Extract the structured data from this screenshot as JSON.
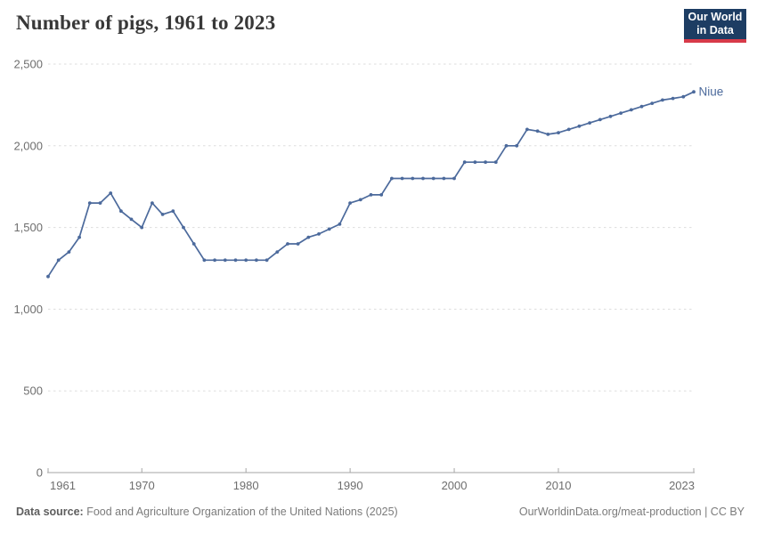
{
  "header": {
    "title": "Number of pigs, 1961 to 2023",
    "logo": {
      "line1": "Our World",
      "line2": "in Data"
    }
  },
  "chart_data": {
    "type": "line",
    "title": "Number of pigs, 1961 to 2023",
    "entity": "Niue",
    "xlim": [
      1961,
      2023
    ],
    "ylim": [
      0,
      2500
    ],
    "grid": true,
    "legend_position": "end-of-line-label",
    "x_ticks": [
      1961,
      1970,
      1980,
      1990,
      2000,
      2010,
      2023
    ],
    "y_ticks": [
      0,
      500,
      1000,
      1500,
      2000,
      2500
    ],
    "y_tick_labels": [
      "0",
      "500",
      "1,000",
      "1,500",
      "2,000",
      "2,500"
    ],
    "x": [
      1961,
      1962,
      1963,
      1964,
      1965,
      1966,
      1967,
      1968,
      1969,
      1970,
      1971,
      1972,
      1973,
      1974,
      1975,
      1976,
      1977,
      1978,
      1979,
      1980,
      1981,
      1982,
      1983,
      1984,
      1985,
      1986,
      1987,
      1988,
      1989,
      1990,
      1991,
      1992,
      1993,
      1994,
      1995,
      1996,
      1997,
      1998,
      1999,
      2000,
      2001,
      2002,
      2003,
      2004,
      2005,
      2006,
      2007,
      2008,
      2009,
      2010,
      2011,
      2012,
      2013,
      2014,
      2015,
      2016,
      2017,
      2018,
      2019,
      2020,
      2021,
      2022,
      2023
    ],
    "values": [
      1200,
      1300,
      1350,
      1440,
      1650,
      1650,
      1710,
      1600,
      1550,
      1500,
      1650,
      1580,
      1600,
      1500,
      1400,
      1300,
      1300,
      1300,
      1300,
      1300,
      1300,
      1300,
      1350,
      1400,
      1400,
      1440,
      1460,
      1490,
      1520,
      1650,
      1670,
      1700,
      1700,
      1800,
      1800,
      1800,
      1800,
      1800,
      1800,
      1800,
      1900,
      1900,
      1900,
      1900,
      2000,
      2000,
      2100,
      2090,
      2070,
      2080,
      2100,
      2120,
      2140,
      2160,
      2180,
      2200,
      2220,
      2240,
      2260,
      2280,
      2290,
      2300,
      2330
    ],
    "line_color": "#4C6A9C"
  },
  "colors": {
    "line": "#4C6A9C",
    "gridline": "#dddddd",
    "axis": "#a6a6a6",
    "tick_label": "#6e6e6e",
    "title": "#383838",
    "logo_bg": "#1d3d63",
    "logo_red": "#d73a49"
  },
  "footer": {
    "source_label": "Data source:",
    "source_text": " Food and Agriculture Organization of the United Nations (2025)",
    "url_text": "OurWorldinData.org/meat-production | CC BY"
  }
}
